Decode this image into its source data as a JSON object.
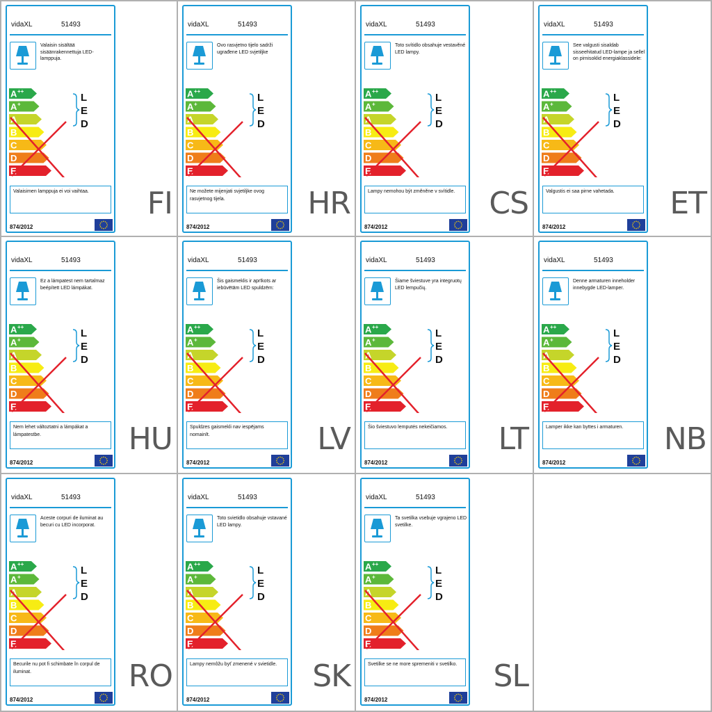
{
  "brand": "vidaXL",
  "model": "51493",
  "regulation": "874/2012",
  "led_letters": [
    "L",
    "E",
    "D"
  ],
  "energy_classes": [
    {
      "letter": "A",
      "sup": "++",
      "color": "#2aa84a"
    },
    {
      "letter": "A",
      "sup": "+",
      "color": "#5cb83a"
    },
    {
      "letter": "A",
      "sup": "",
      "color": "#c5d52a"
    },
    {
      "letter": "B",
      "sup": "",
      "color": "#f7ec13"
    },
    {
      "letter": "C",
      "sup": "",
      "color": "#f7b917"
    },
    {
      "letter": "D",
      "sup": "",
      "color": "#ef7d1a"
    },
    {
      "letter": "E",
      "sup": "",
      "color": "#e3212b"
    }
  ],
  "accent_color": "#1a9ad6",
  "cross_color": "#e3212b",
  "labels": [
    {
      "lang": "FI",
      "text": "Valaisin sisältää sisäänrakennettuja LED-lamppuja.",
      "notice": "Valaisimen lamppuja ei voi vaihtaa."
    },
    {
      "lang": "HR",
      "text": "Ovo rasvjetno tijelo sadrži ugrađene LED svjetiljke",
      "notice": "Ne možete mijenjati svjetiljke ovog rasvjetnog tijela."
    },
    {
      "lang": "CS",
      "text": "Toto svítidlo obsahuje vestavěné LED lampy.",
      "notice": "Lampy nemohou být změněne v svítidle."
    },
    {
      "lang": "ET",
      "text": "See valgusti sisaldab sisseehitatud LED-lampe ja sellel on pirnisoklid energiaklassidele:",
      "notice": "Valgustis ei saa pirne vahetada."
    },
    {
      "lang": "HU",
      "text": "Ez a lámpatest nem tartalmaz beépített LED lámpákat.",
      "notice": "Nem lehet változtatni a lámpákat a lámpatestbe."
    },
    {
      "lang": "LV",
      "text": "Šis gaismeklis ir aprīkots ar iebūvētām LED spuldzēm:",
      "notice": "Spuldzes gaismekli nav iespējams nomainīt."
    },
    {
      "lang": "LT",
      "text": "Šiame šviestuve yra integruotų LED lempučių.",
      "notice": "Šio šviestuvo lemputės nekeičiamos."
    },
    {
      "lang": "NB",
      "text": "Denne armaturen inneholder innebygde LED-lamper.",
      "notice": "Lamper ikke kan byttes i armaturen."
    },
    {
      "lang": "RO",
      "text": "Aceste corpuri de iluminat au becuri cu LED incorporat.",
      "notice": "Becurile nu pot fi schimbate în corpul de iluminat."
    },
    {
      "lang": "SK",
      "text": "Toto svietidlo obsahuje vstavané LED lampy.",
      "notice": "Lampy nemôžu byť zmenené v svietidle."
    },
    {
      "lang": "SL",
      "text": "Ta svetilka vsebuje vgrajeno LED svetilke.",
      "notice": "Svetilke se ne more spremeniti v svetilko."
    }
  ]
}
